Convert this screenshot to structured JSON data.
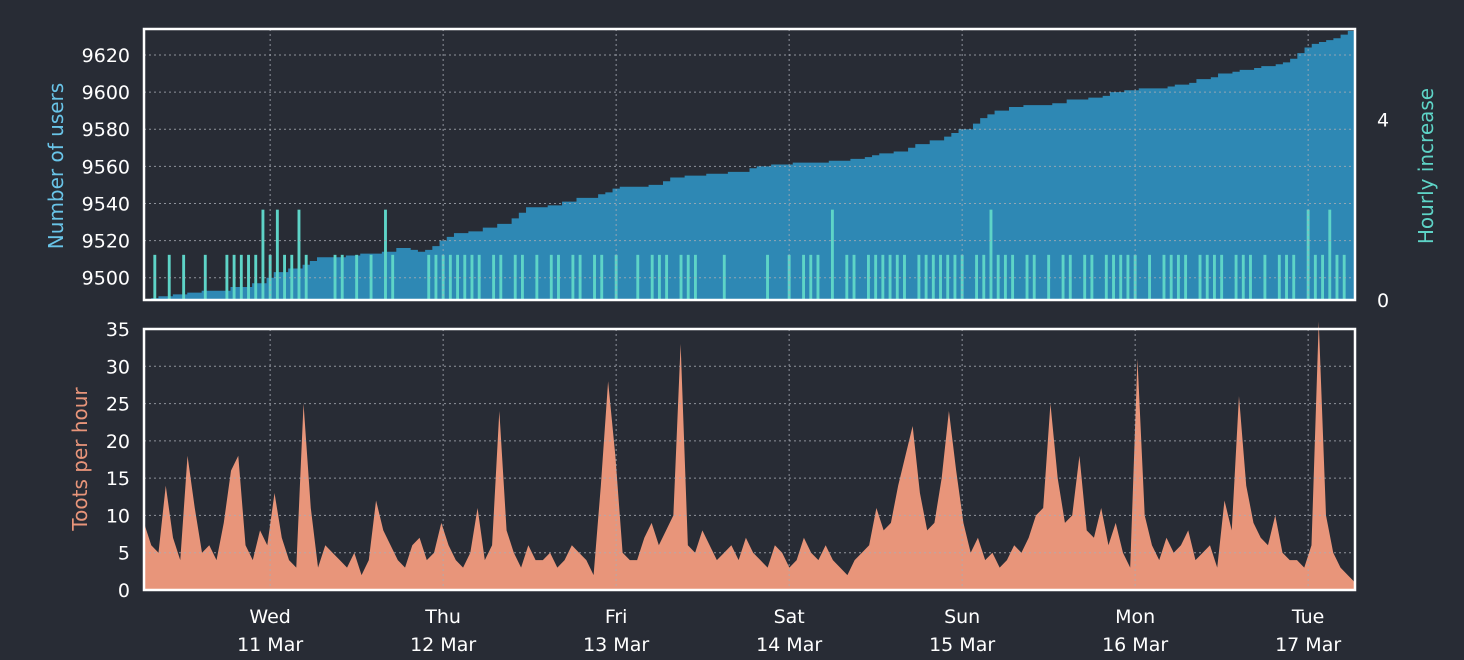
{
  "colors": {
    "background": "#282c35",
    "frame": "#ffffff",
    "grid": "#a9adb5",
    "text": "#ffffff",
    "users_fill": "#2e88b4",
    "users_label": "#69c4e8",
    "hourly_fill": "#5ed4c7",
    "hourly_label": "#5ed4c7",
    "toots_fill": "#e8957a",
    "toots_label": "#e8957a"
  },
  "chart_data": [
    {
      "type": "area",
      "ylabel": "Number of users",
      "ylim": [
        9488,
        9634
      ],
      "yticks": [
        "9500",
        "9520",
        "9540",
        "9560",
        "9580",
        "9600",
        "9620"
      ],
      "x_range_hours": [
        0,
        168
      ],
      "series": [
        {
          "values": [
            [
              0,
              9488
            ],
            [
              1,
              9489
            ],
            [
              2,
              9490
            ],
            [
              4,
              9491
            ],
            [
              6,
              9492
            ],
            [
              8,
              9493
            ],
            [
              12,
              9495
            ],
            [
              15,
              9497
            ],
            [
              17,
              9500
            ],
            [
              18,
              9503
            ],
            [
              20,
              9505
            ],
            [
              22,
              9507
            ],
            [
              23,
              9509
            ],
            [
              24,
              9511
            ],
            [
              28,
              9512
            ],
            [
              30,
              9513
            ],
            [
              33,
              9514
            ],
            [
              35,
              9516
            ],
            [
              37,
              9515
            ],
            [
              38,
              9514
            ],
            [
              39,
              9515
            ],
            [
              40,
              9517
            ],
            [
              41,
              9520
            ],
            [
              42,
              9522
            ],
            [
              43,
              9524
            ],
            [
              45,
              9525
            ],
            [
              47,
              9527
            ],
            [
              49,
              9529
            ],
            [
              51,
              9532
            ],
            [
              52,
              9535
            ],
            [
              53,
              9538
            ],
            [
              56,
              9539
            ],
            [
              58,
              9541
            ],
            [
              60,
              9543
            ],
            [
              63,
              9545
            ],
            [
              64,
              9546
            ],
            [
              65,
              9548
            ],
            [
              66,
              9549
            ],
            [
              70,
              9550
            ],
            [
              72,
              9552
            ],
            [
              73,
              9554
            ],
            [
              75,
              9555
            ],
            [
              78,
              9556
            ],
            [
              81,
              9557
            ],
            [
              84,
              9559
            ],
            [
              85,
              9560
            ],
            [
              87,
              9561
            ],
            [
              90,
              9562
            ],
            [
              95,
              9563
            ],
            [
              98,
              9564
            ],
            [
              100,
              9565
            ],
            [
              101,
              9566
            ],
            [
              102,
              9567
            ],
            [
              104,
              9568
            ],
            [
              106,
              9570
            ],
            [
              107,
              9572
            ],
            [
              109,
              9574
            ],
            [
              111,
              9576
            ],
            [
              112,
              9578
            ],
            [
              113,
              9580
            ],
            [
              115,
              9583
            ],
            [
              116,
              9586
            ],
            [
              117,
              9588
            ],
            [
              118,
              9590
            ],
            [
              120,
              9592
            ],
            [
              122,
              9593
            ],
            [
              126,
              9594
            ],
            [
              128,
              9596
            ],
            [
              131,
              9597
            ],
            [
              133,
              9598
            ],
            [
              134,
              9600
            ],
            [
              136,
              9601
            ],
            [
              138,
              9602
            ],
            [
              142,
              9603
            ],
            [
              143,
              9604
            ],
            [
              145,
              9605
            ],
            [
              146,
              9607
            ],
            [
              148,
              9608
            ],
            [
              149,
              9610
            ],
            [
              151,
              9611
            ],
            [
              152,
              9612
            ],
            [
              154,
              9613
            ],
            [
              155,
              9614
            ],
            [
              157,
              9615
            ],
            [
              158,
              9616
            ],
            [
              159,
              9618
            ],
            [
              160,
              9621
            ],
            [
              161,
              9624
            ],
            [
              162,
              9626
            ],
            [
              163,
              9627
            ],
            [
              164,
              9628
            ],
            [
              165,
              9629
            ],
            [
              166,
              9631
            ],
            [
              167,
              9633
            ],
            [
              168,
              9634
            ]
          ]
        }
      ]
    },
    {
      "type": "bar",
      "ylabel": "Hourly increase",
      "ylim": [
        0,
        6
      ],
      "yticks": [
        "0",
        "4"
      ],
      "x_range_hours": [
        0,
        168
      ],
      "values": [
        0,
        1,
        0,
        1,
        0,
        1,
        0,
        0,
        1,
        0,
        0,
        1,
        1,
        1,
        1,
        1,
        2,
        1,
        2,
        1,
        1,
        2,
        1,
        0,
        0,
        0,
        1,
        1,
        0,
        1,
        0,
        1,
        0,
        2,
        1,
        0,
        0,
        0,
        0,
        1,
        1,
        1,
        1,
        1,
        1,
        1,
        1,
        0,
        1,
        1,
        0,
        1,
        1,
        0,
        1,
        0,
        1,
        1,
        0,
        1,
        1,
        0,
        1,
        1,
        0,
        1,
        0,
        0,
        1,
        0,
        1,
        1,
        1,
        0,
        1,
        1,
        1,
        0,
        0,
        0,
        1,
        0,
        0,
        0,
        0,
        0,
        1,
        0,
        0,
        1,
        0,
        1,
        1,
        1,
        0,
        2,
        0,
        1,
        1,
        0,
        1,
        1,
        1,
        1,
        1,
        1,
        0,
        1,
        1,
        1,
        1,
        1,
        1,
        1,
        0,
        1,
        1,
        2,
        1,
        1,
        1,
        0,
        1,
        1,
        0,
        1,
        0,
        1,
        1,
        0,
        1,
        1,
        0,
        1,
        1,
        1,
        1,
        1,
        0,
        1,
        0,
        1,
        1,
        1,
        1,
        0,
        1,
        1,
        1,
        1,
        0,
        1,
        1,
        1,
        0,
        1,
        0,
        1,
        1,
        1,
        0,
        2,
        1,
        1,
        2,
        1,
        1,
        0
      ]
    },
    {
      "type": "area",
      "ylabel": "Toots per hour",
      "ylim": [
        0,
        35
      ],
      "yticks": [
        "0",
        "5",
        "10",
        "15",
        "20",
        "25",
        "30",
        "35"
      ],
      "x_range_hours": [
        0,
        168
      ],
      "x_tick_labels": [
        [
          "Wed",
          "11 Mar"
        ],
        [
          "Thu",
          "12 Mar"
        ],
        [
          "Fri",
          "13 Mar"
        ],
        [
          "Sat",
          "14 Mar"
        ],
        [
          "Sun",
          "15 Mar"
        ],
        [
          "Mon",
          "16 Mar"
        ],
        [
          "Tue",
          "17 Mar"
        ]
      ],
      "x_tick_hours": [
        17.5,
        41.5,
        65.5,
        89.5,
        113.5,
        137.5,
        161.5
      ],
      "values": [
        9,
        6,
        5,
        14,
        7,
        4,
        18,
        11,
        5,
        6,
        4,
        9,
        16,
        18,
        6,
        4,
        8,
        6,
        13,
        7,
        4,
        3,
        25,
        11,
        3,
        6,
        5,
        4,
        3,
        5,
        2,
        4,
        12,
        8,
        6,
        4,
        3,
        6,
        7,
        4,
        5,
        9,
        6,
        4,
        3,
        5,
        11,
        4,
        6,
        24,
        8,
        5,
        3,
        6,
        4,
        4,
        5,
        3,
        4,
        6,
        5,
        4,
        2,
        14,
        28,
        18,
        5,
        4,
        4,
        7,
        9,
        6,
        8,
        10,
        33,
        6,
        5,
        8,
        6,
        4,
        5,
        6,
        4,
        7,
        5,
        4,
        3,
        6,
        5,
        3,
        4,
        7,
        5,
        4,
        6,
        4,
        3,
        2,
        4,
        5,
        6,
        11,
        8,
        9,
        14,
        18,
        22,
        13,
        8,
        9,
        15,
        24,
        16,
        9,
        5,
        7,
        4,
        5,
        3,
        4,
        6,
        5,
        7,
        10,
        11,
        25,
        15,
        9,
        10,
        18,
        8,
        7,
        11,
        6,
        9,
        5,
        3,
        31,
        10,
        6,
        4,
        7,
        5,
        6,
        8,
        4,
        5,
        6,
        3,
        12,
        8,
        26,
        14,
        9,
        7,
        6,
        10,
        5,
        4,
        4,
        3,
        6,
        36,
        10,
        5,
        3,
        2,
        1
      ]
    }
  ]
}
